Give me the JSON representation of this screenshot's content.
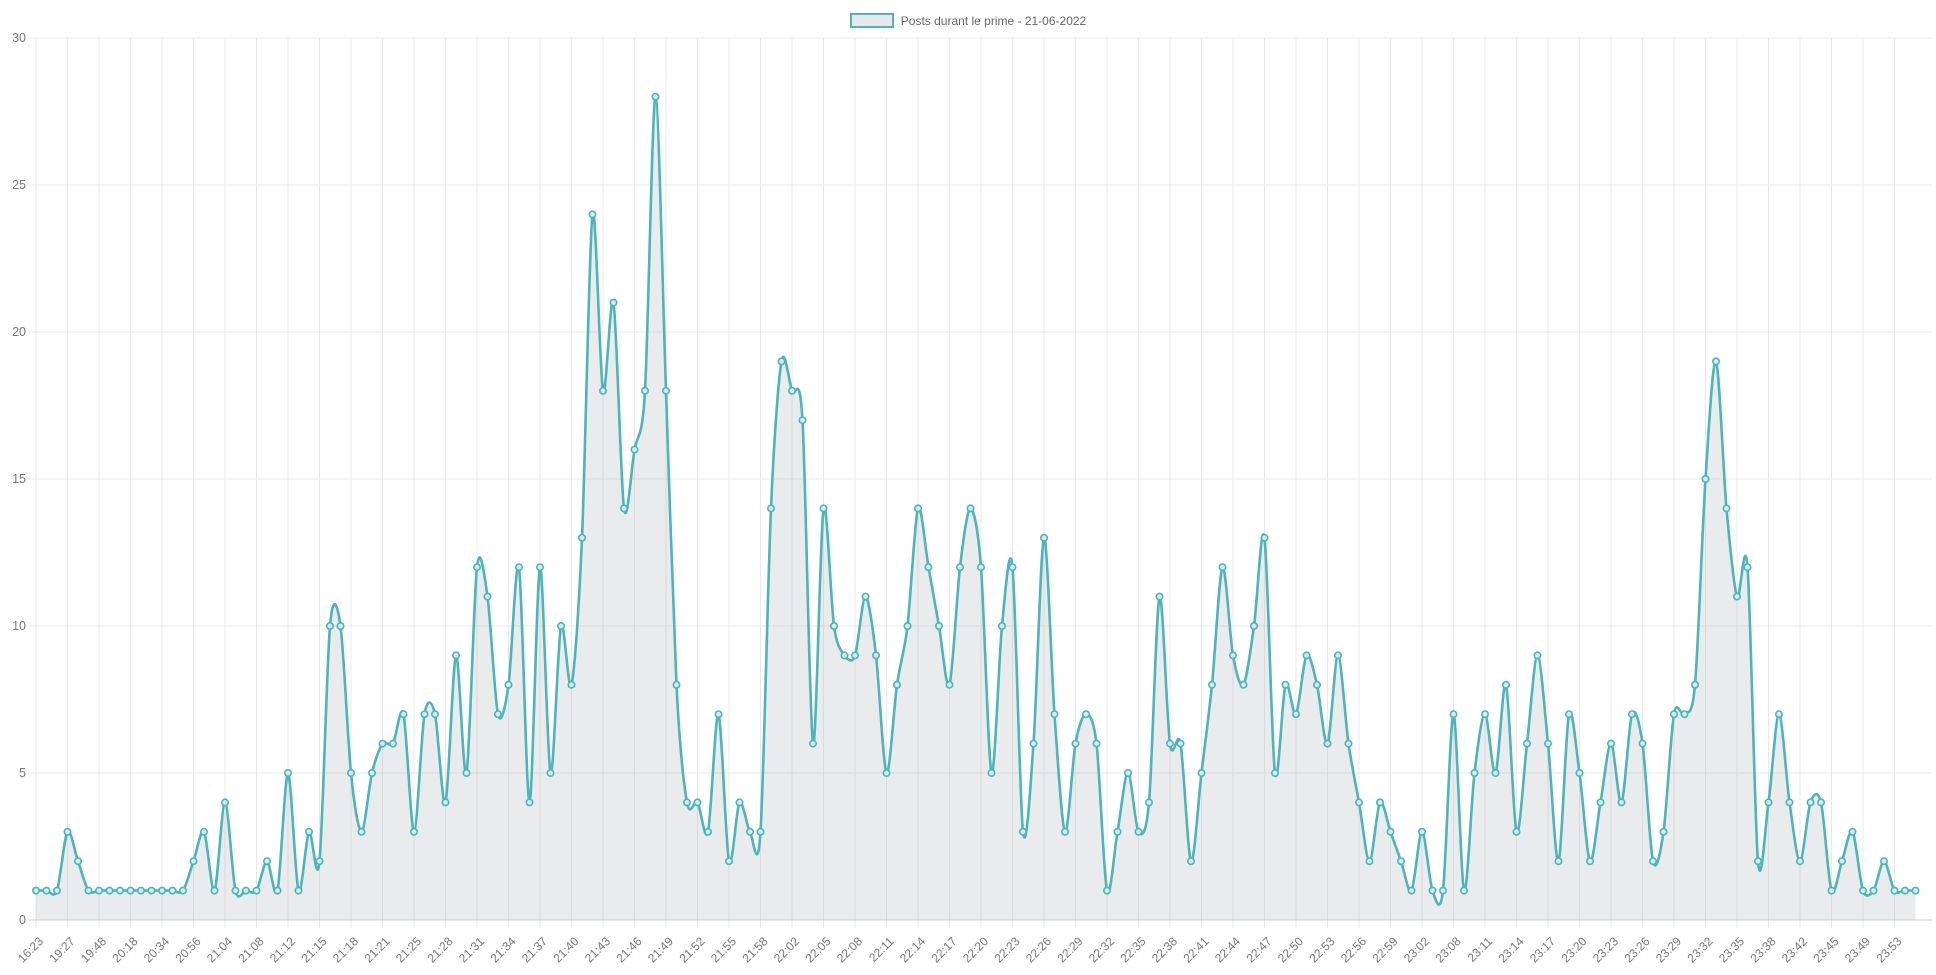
{
  "chart_data": {
    "type": "line",
    "title": "Posts durant le prime - 21-06-2022",
    "legend": "Posts durant le prime - 21-06-2022",
    "legend_position": "top",
    "grid": true,
    "ylim": [
      0,
      30
    ],
    "y_ticks": [
      0,
      5,
      10,
      15,
      20,
      25,
      30
    ],
    "xlabel": "",
    "ylabel": "",
    "label_every": 3,
    "x_labels": [
      "16:23",
      "19:27",
      "19:48",
      "20:18",
      "20:34",
      "20:56",
      "21:04",
      "21:08",
      "21:12",
      "21:15",
      "21:18",
      "21:21",
      "21:25",
      "21:28",
      "21:31",
      "21:34",
      "21:37",
      "21:40",
      "21:43",
      "21:46",
      "21:49",
      "21:52",
      "21:55",
      "21:58",
      "22:02",
      "22:05",
      "22:08",
      "22:11",
      "22:14",
      "22:17",
      "22:20",
      "22:23",
      "22:26",
      "22:29",
      "22:32",
      "22:35",
      "22:38",
      "22:41",
      "22:44",
      "22:47",
      "22:50",
      "22:53",
      "22:56",
      "22:59",
      "23:02",
      "23:08",
      "23:11",
      "23:14",
      "23:17",
      "23:20",
      "23:23",
      "23:26",
      "23:29",
      "23:32",
      "23:35",
      "23:38",
      "23:42",
      "23:45",
      "23:49",
      "23:53"
    ],
    "values": [
      1,
      1,
      1,
      3,
      2,
      1,
      1,
      1,
      1,
      1,
      1,
      1,
      1,
      1,
      1,
      2,
      3,
      1,
      4,
      1,
      1,
      1,
      2,
      1,
      5,
      1,
      3,
      2,
      10,
      10,
      5,
      3,
      5,
      6,
      6,
      7,
      3,
      7,
      7,
      4,
      9,
      5,
      12,
      11,
      7,
      8,
      12,
      4,
      12,
      5,
      10,
      8,
      13,
      24,
      18,
      21,
      14,
      16,
      18,
      28,
      18,
      8,
      4,
      4,
      3,
      7,
      2,
      4,
      3,
      3,
      14,
      19,
      18,
      17,
      6,
      14,
      10,
      9,
      9,
      11,
      9,
      5,
      8,
      10,
      14,
      12,
      10,
      8,
      12,
      14,
      12,
      5,
      10,
      12,
      3,
      6,
      13,
      7,
      3,
      6,
      7,
      6,
      1,
      3,
      5,
      3,
      4,
      11,
      6,
      6,
      2,
      5,
      8,
      12,
      9,
      8,
      10,
      13,
      5,
      8,
      7,
      9,
      8,
      6,
      9,
      6,
      4,
      2,
      4,
      3,
      2,
      1,
      3,
      1,
      1,
      7,
      1,
      5,
      7,
      5,
      8,
      3,
      6,
      9,
      6,
      2,
      7,
      5,
      2,
      4,
      6,
      4,
      7,
      6,
      2,
      3,
      7,
      7,
      8,
      15,
      19,
      14,
      11,
      12,
      2,
      4,
      7,
      4,
      2,
      4,
      4,
      1,
      2,
      3,
      1,
      1,
      2,
      1,
      1,
      1
    ],
    "colors": {
      "line": "#4bb5ba",
      "point_fill": "#d2ecee",
      "area_fill_rgba": "rgba(170,175,185,0.25)",
      "grid": "#e8e8e8",
      "axis": "#d0d0d0",
      "tick_text": "#777777"
    }
  }
}
